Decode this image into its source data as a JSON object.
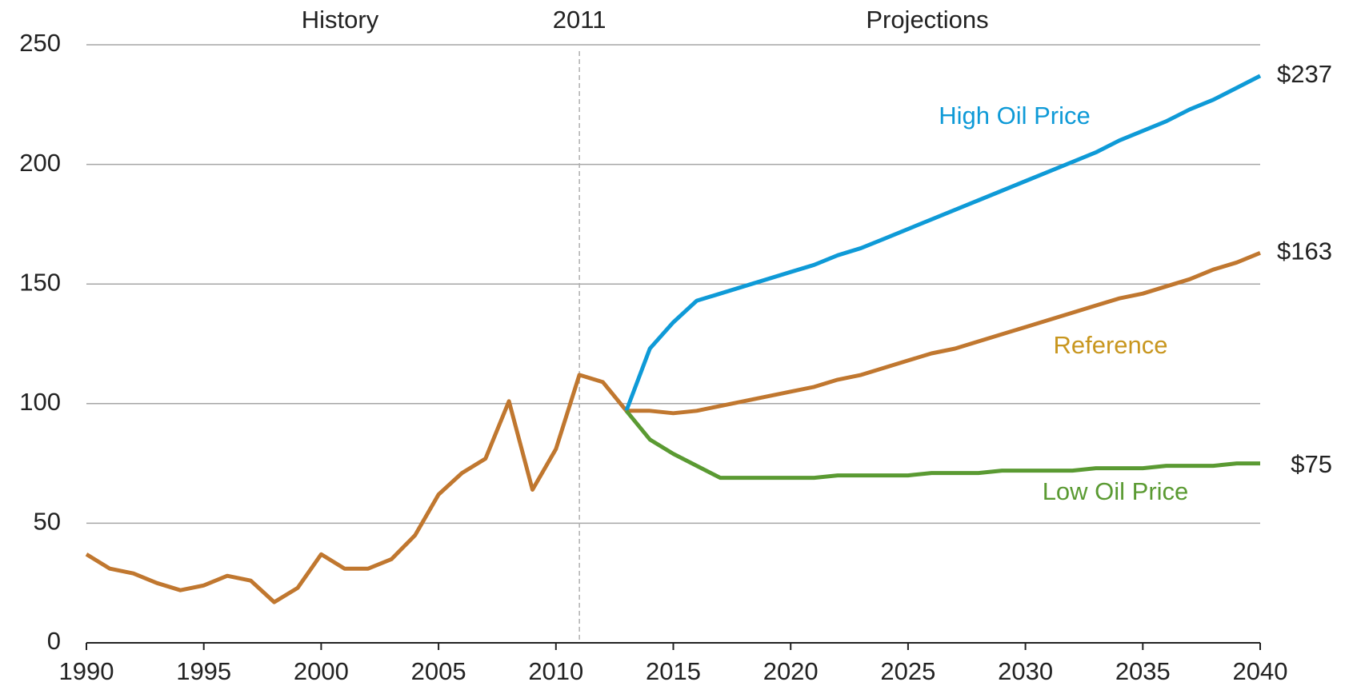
{
  "chart_data": {
    "type": "line",
    "annotations": [
      "History",
      "Projections"
    ],
    "divider": {
      "x": 2011,
      "label": "2011"
    },
    "x": [
      1990,
      1991,
      1992,
      1993,
      1994,
      1995,
      1996,
      1997,
      1998,
      1999,
      2000,
      2001,
      2002,
      2003,
      2004,
      2005,
      2006,
      2007,
      2008,
      2009,
      2010,
      2011,
      2012,
      2013,
      2014,
      2015,
      2016,
      2017,
      2018,
      2019,
      2020,
      2021,
      2022,
      2023,
      2024,
      2025,
      2026,
      2027,
      2028,
      2029,
      2030,
      2031,
      2032,
      2033,
      2034,
      2035,
      2036,
      2037,
      2038,
      2039,
      2040
    ],
    "series": [
      {
        "name": "Reference",
        "color": "#c0772f",
        "label_color": "#c8961e",
        "end_label": "$163",
        "values": [
          37,
          31,
          29,
          25,
          22,
          24,
          28,
          26,
          17,
          23,
          37,
          31,
          31,
          35,
          45,
          62,
          71,
          77,
          101,
          64,
          81,
          112,
          109,
          97,
          97,
          96,
          97,
          99,
          101,
          103,
          105,
          107,
          110,
          112,
          115,
          118,
          121,
          123,
          126,
          129,
          132,
          135,
          138,
          141,
          144,
          146,
          149,
          152,
          156,
          159,
          163
        ]
      },
      {
        "name": "High Oil Price",
        "color": "#0e9ad7",
        "label_color": "#0e9ad7",
        "end_label": "$237",
        "values": [
          null,
          null,
          null,
          null,
          null,
          null,
          null,
          null,
          null,
          null,
          null,
          null,
          null,
          null,
          null,
          null,
          null,
          null,
          null,
          null,
          null,
          null,
          null,
          97,
          123,
          134,
          143,
          146,
          149,
          152,
          155,
          158,
          162,
          165,
          169,
          173,
          177,
          181,
          185,
          189,
          193,
          197,
          201,
          205,
          210,
          214,
          218,
          223,
          227,
          232,
          237
        ]
      },
      {
        "name": "Low Oil Price",
        "color": "#5a9a32",
        "label_color": "#5a9a32",
        "end_label": "$75",
        "values": [
          null,
          null,
          null,
          null,
          null,
          null,
          null,
          null,
          null,
          null,
          null,
          null,
          null,
          null,
          null,
          null,
          null,
          null,
          null,
          null,
          null,
          null,
          null,
          97,
          85,
          79,
          74,
          69,
          69,
          69,
          69,
          69,
          70,
          70,
          70,
          70,
          71,
          71,
          71,
          72,
          72,
          72,
          72,
          73,
          73,
          73,
          74,
          74,
          74,
          75,
          75
        ]
      }
    ],
    "xlim": [
      1990,
      2040
    ],
    "xticks": [
      1990,
      1995,
      2000,
      2005,
      2010,
      2015,
      2020,
      2025,
      2030,
      2035,
      2040
    ],
    "ylim": [
      0,
      250
    ],
    "yticks": [
      0,
      50,
      100,
      150,
      200,
      250
    ],
    "grid": true
  }
}
